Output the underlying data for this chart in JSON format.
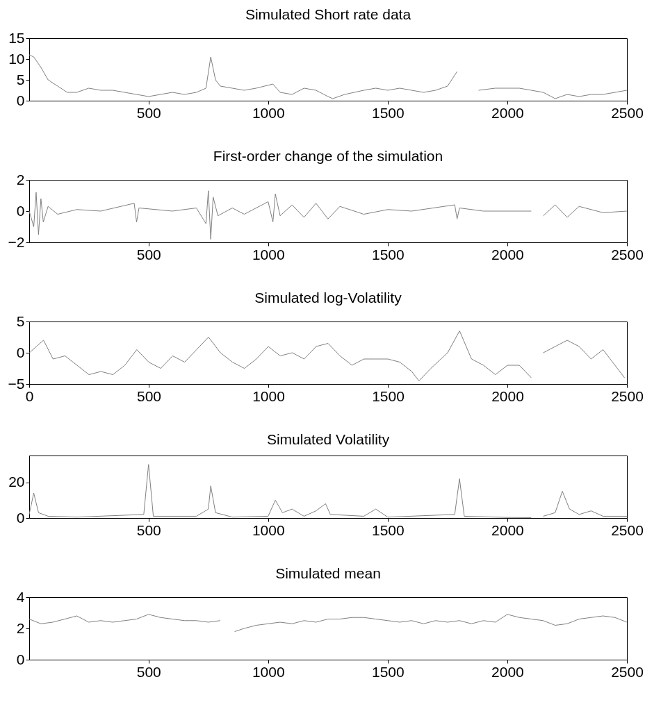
{
  "chart_data": [
    {
      "type": "line",
      "title": "Simulated Short rate data",
      "color": "#808080",
      "xlim": [
        1,
        2500
      ],
      "xticks": [
        500,
        1000,
        1500,
        2000,
        2500
      ],
      "ylim": [
        0,
        15
      ],
      "yticks": [
        0,
        5,
        10,
        15
      ],
      "x": [
        1,
        20,
        50,
        80,
        120,
        160,
        200,
        250,
        300,
        350,
        400,
        450,
        500,
        550,
        600,
        650,
        700,
        740,
        760,
        780,
        800,
        850,
        900,
        950,
        1020,
        1050,
        1100,
        1150,
        1200,
        1250,
        1270,
        1320,
        1400,
        1450,
        1500,
        1550,
        1600,
        1650,
        1700,
        1750,
        1790,
        1800,
        1880,
        1950,
        2000,
        2050,
        2100,
        2150,
        2200,
        2250,
        2300,
        2350,
        2400,
        2450,
        2500
      ],
      "values": [
        11,
        10.5,
        8,
        5,
        3.5,
        2,
        2,
        3,
        2.5,
        2.5,
        2,
        1.5,
        1,
        1.5,
        2,
        1.5,
        2,
        3,
        10.5,
        5,
        3.5,
        3,
        2.5,
        3,
        4,
        2,
        1.5,
        3,
        2.5,
        1,
        0.5,
        1.5,
        2.5,
        3,
        2.5,
        3,
        2.5,
        2,
        2.5,
        3.5,
        7,
        null,
        2.5,
        3,
        3,
        3,
        2.5,
        2,
        0.5,
        1.5,
        1,
        1.5,
        1.5,
        2,
        2.5
      ]
    },
    {
      "type": "line",
      "title": "First-order change of the simulation",
      "color": "#808080",
      "xlim": [
        1,
        2500
      ],
      "xticks": [
        500,
        1000,
        1500,
        2000,
        2500
      ],
      "ylim": [
        -2,
        2
      ],
      "yticks": [
        -2,
        0,
        2
      ],
      "x": [
        1,
        20,
        30,
        40,
        50,
        60,
        80,
        120,
        200,
        300,
        440,
        450,
        460,
        600,
        700,
        740,
        750,
        760,
        770,
        790,
        850,
        900,
        1000,
        1020,
        1030,
        1050,
        1100,
        1150,
        1200,
        1250,
        1300,
        1400,
        1500,
        1600,
        1780,
        1790,
        1800,
        1900,
        2100,
        2110,
        2150,
        2200,
        2250,
        2300,
        2400,
        2500
      ],
      "values": [
        0,
        -1,
        1.2,
        -1.5,
        0.8,
        -0.7,
        0.3,
        -0.2,
        0.1,
        0,
        0.5,
        -0.7,
        0.2,
        0,
        0.2,
        -0.8,
        1.3,
        -1.8,
        0.9,
        -0.3,
        0.2,
        -0.2,
        0.6,
        -0.7,
        1.1,
        -0.3,
        0.4,
        -0.4,
        0.5,
        -0.5,
        0.3,
        -0.2,
        0.1,
        0,
        0.4,
        -0.5,
        0.2,
        0,
        0,
        null,
        -0.3,
        0.4,
        -0.4,
        0.3,
        -0.1,
        0
      ]
    },
    {
      "type": "line",
      "title": "Simulated log-Volatility",
      "color": "#808080",
      "xlim": [
        0,
        2500
      ],
      "xticks": [
        0,
        500,
        1000,
        1500,
        2000,
        2500
      ],
      "ylim": [
        -5,
        5
      ],
      "yticks": [
        -5,
        0,
        5
      ],
      "x": [
        1,
        30,
        60,
        100,
        150,
        200,
        250,
        300,
        350,
        400,
        450,
        500,
        550,
        600,
        650,
        700,
        750,
        800,
        850,
        900,
        950,
        1000,
        1050,
        1100,
        1150,
        1200,
        1250,
        1300,
        1350,
        1400,
        1450,
        1500,
        1550,
        1600,
        1630,
        1680,
        1750,
        1800,
        1850,
        1900,
        1950,
        2000,
        2050,
        2100,
        2120,
        2150,
        2200,
        2250,
        2300,
        2350,
        2400,
        2450,
        2490
      ],
      "values": [
        0,
        1,
        2,
        -1,
        -0.5,
        -2,
        -3.5,
        -3,
        -3.5,
        -2,
        0.5,
        -1.5,
        -2.5,
        -0.5,
        -1.5,
        0.5,
        2.5,
        0,
        -1.5,
        -2.5,
        -1,
        1,
        -0.5,
        0,
        -1,
        1,
        1.5,
        -0.5,
        -2,
        -1,
        -1,
        -1,
        -1.5,
        -3,
        -4.5,
        -2.5,
        0,
        3.5,
        -1,
        -2,
        -3.5,
        -2,
        -2,
        -4,
        null,
        0,
        1,
        2,
        1,
        -1,
        0.5,
        -2,
        -4
      ]
    },
    {
      "type": "line",
      "title": "Simulated Volatility",
      "color": "#808080",
      "xlim": [
        1,
        2500
      ],
      "xticks": [
        500,
        1000,
        1500,
        2000,
        2500
      ],
      "ylim": [
        0,
        35
      ],
      "yticks": [
        0,
        20
      ],
      "x": [
        1,
        20,
        40,
        80,
        200,
        480,
        500,
        520,
        700,
        750,
        760,
        780,
        850,
        1000,
        1030,
        1060,
        1100,
        1150,
        1200,
        1240,
        1260,
        1400,
        1450,
        1500,
        1780,
        1800,
        1820,
        2000,
        2100,
        2120,
        2150,
        2200,
        2230,
        2260,
        2300,
        2350,
        2400,
        2500
      ],
      "values": [
        2,
        14,
        3,
        1,
        0.5,
        2,
        30,
        1,
        1,
        5,
        18,
        3,
        0.5,
        1,
        10,
        3,
        5,
        1,
        4,
        8,
        2,
        1,
        5,
        0.5,
        2,
        22,
        1,
        0.3,
        0.2,
        null,
        1,
        3,
        15,
        5,
        2,
        4,
        1,
        1
      ]
    },
    {
      "type": "line",
      "title": "Simulated mean",
      "color": "#808080",
      "xlim": [
        1,
        2500
      ],
      "xticks": [
        500,
        1000,
        1500,
        2000,
        2500
      ],
      "ylim": [
        0,
        4
      ],
      "yticks": [
        0,
        2,
        4
      ],
      "x": [
        1,
        50,
        100,
        150,
        200,
        250,
        300,
        350,
        400,
        450,
        500,
        550,
        600,
        650,
        700,
        750,
        800,
        830,
        860,
        900,
        950,
        1000,
        1050,
        1100,
        1150,
        1200,
        1250,
        1300,
        1350,
        1400,
        1450,
        1500,
        1550,
        1600,
        1650,
        1700,
        1750,
        1800,
        1850,
        1900,
        1950,
        2000,
        2050,
        2100,
        2150,
        2200,
        2250,
        2300,
        2350,
        2400,
        2450,
        2500
      ],
      "values": [
        2.6,
        2.3,
        2.4,
        2.6,
        2.8,
        2.4,
        2.5,
        2.4,
        2.5,
        2.6,
        2.9,
        2.7,
        2.6,
        2.5,
        2.5,
        2.4,
        2.5,
        null,
        1.8,
        2,
        2.2,
        2.3,
        2.4,
        2.3,
        2.5,
        2.4,
        2.6,
        2.6,
        2.7,
        2.7,
        2.6,
        2.5,
        2.4,
        2.5,
        2.3,
        2.5,
        2.4,
        2.5,
        2.3,
        2.5,
        2.4,
        2.9,
        2.7,
        2.6,
        2.5,
        2.2,
        2.3,
        2.6,
        2.7,
        2.8,
        2.7,
        2.4
      ]
    }
  ]
}
